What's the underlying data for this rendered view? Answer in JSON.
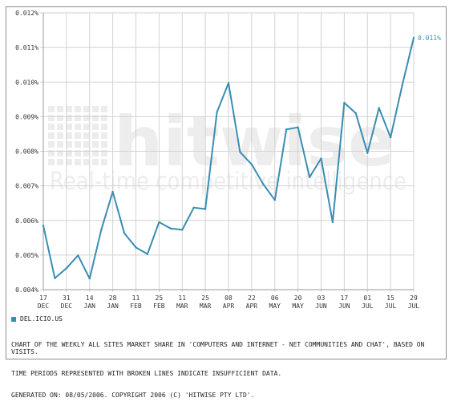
{
  "chart_data": {
    "type": "line",
    "y_axis": {
      "ticks": [
        "0.004%",
        "0.005%",
        "0.006%",
        "0.007%",
        "0.008%",
        "0.009%",
        "0.010%",
        "0.011%",
        "0.012%"
      ],
      "ylim": [
        0.004,
        0.012
      ],
      "unit": "%"
    },
    "x_axis": {
      "ticks": [
        {
          "day": "17",
          "month": "DEC"
        },
        {
          "day": "31",
          "month": "DEC"
        },
        {
          "day": "14",
          "month": "JAN"
        },
        {
          "day": "28",
          "month": "JAN"
        },
        {
          "day": "11",
          "month": "FEB"
        },
        {
          "day": "25",
          "month": "FEB"
        },
        {
          "day": "11",
          "month": "MAR"
        },
        {
          "day": "25",
          "month": "MAR"
        },
        {
          "day": "08",
          "month": "APR"
        },
        {
          "day": "22",
          "month": "APR"
        },
        {
          "day": "06",
          "month": "MAY"
        },
        {
          "day": "20",
          "month": "MAY"
        },
        {
          "day": "03",
          "month": "JUN"
        },
        {
          "day": "17",
          "month": "JUN"
        },
        {
          "day": "01",
          "month": "JUL"
        },
        {
          "day": "15",
          "month": "JUL"
        },
        {
          "day": "29",
          "month": "JUL"
        }
      ]
    },
    "series": [
      {
        "name": "DEL.ICIO.US",
        "color": "#3a8db3",
        "values": [
          0.00585,
          0.00433,
          0.00462,
          0.00499,
          0.00432,
          0.00572,
          0.00683,
          0.00563,
          0.00522,
          0.00503,
          0.00595,
          0.00577,
          0.00573,
          0.00637,
          0.00633,
          0.00913,
          0.00997,
          0.00798,
          0.00762,
          0.00705,
          0.00659,
          0.00863,
          0.00869,
          0.00725,
          0.00779,
          0.00595,
          0.0094,
          0.0091,
          0.00795,
          0.00925,
          0.0084,
          0.0099,
          0.01128
        ]
      }
    ],
    "end_label": "0.011%",
    "grid": true,
    "legend_position": "bottom-left"
  },
  "watermark": {
    "brand": "hitwise",
    "tagline": "Real-time competitive intelligence"
  },
  "legend": {
    "label": "DEL.ICIO.US"
  },
  "notes": [
    "CHART OF THE WEEKLY ALL SITES MARKET SHARE IN 'COMPUTERS AND INTERNET - NET COMMUNITIES AND CHAT', BASED ON VISITS.",
    "TIME PERIODS REPRESENTED WITH BROKEN LINES INDICATE INSUFFICIENT DATA.",
    "GENERATED ON: 08/05/2006. COPYRIGHT 2006 (C) 'HITWISE PTY LTD'."
  ]
}
